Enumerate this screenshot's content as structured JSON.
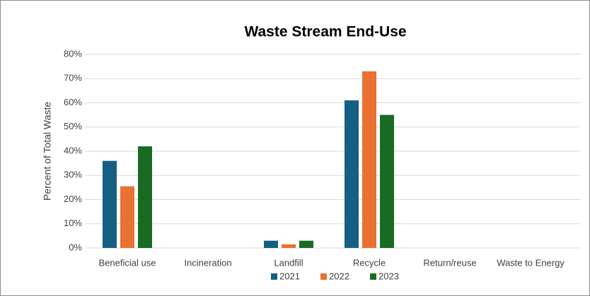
{
  "chart_data": {
    "type": "bar",
    "title": "Waste Stream End-Use",
    "ylabel": "Percent of Total Waste",
    "categories": [
      "Beneficial use",
      "Incineration",
      "Landfill",
      "Recycle",
      "Return/reuse",
      "Waste to Energy"
    ],
    "series": [
      {
        "name": "2021",
        "color": "#156082",
        "values": [
          36,
          0,
          3,
          61,
          0,
          0
        ]
      },
      {
        "name": "2022",
        "color": "#e97132",
        "values": [
          25.5,
          0,
          1.5,
          73,
          0,
          0
        ]
      },
      {
        "name": "2023",
        "color": "#196b24",
        "values": [
          42,
          0,
          3,
          55,
          0,
          0
        ]
      }
    ],
    "ylim": [
      0,
      80
    ],
    "yticks": [
      {
        "value": 0,
        "label": "0%"
      },
      {
        "value": 10,
        "label": "10%"
      },
      {
        "value": 20,
        "label": "20%"
      },
      {
        "value": 30,
        "label": "30%"
      },
      {
        "value": 40,
        "label": "40%"
      },
      {
        "value": 50,
        "label": "50%"
      },
      {
        "value": 60,
        "label": "60%"
      },
      {
        "value": 70,
        "label": "70%"
      },
      {
        "value": 80,
        "label": "80%"
      }
    ],
    "grid": true,
    "legend": "bottom"
  }
}
